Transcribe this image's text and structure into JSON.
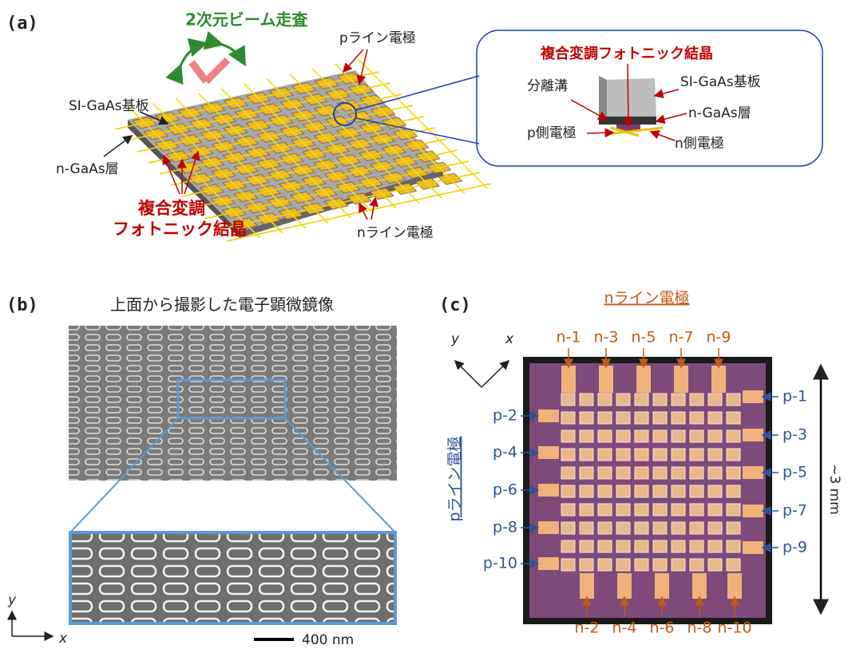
{
  "panel_a": {
    "label": "(a)",
    "beam_scan": "2次元ビーム走査",
    "p_line": "pライン電極",
    "substrate": "SI-GaAs基板",
    "n_layer": "n-GaAs層",
    "crystal_lines": [
      "複合変調",
      "フォトニック結晶"
    ],
    "n_line": "nライン電極",
    "inset": {
      "title": "複合変調フォトニック結晶",
      "groove": "分離溝",
      "substrate": "SI-GaAs基板",
      "n_layer": "n-GaAs層",
      "p_electrode": "p側電極",
      "n_electrode": "n側電極"
    }
  },
  "panel_b": {
    "label": "(b)",
    "title": "上面から撮影した電子顕微鏡像",
    "axis_y": "y",
    "axis_x": "x",
    "scale": "400 nm"
  },
  "panel_c": {
    "label": "(c)",
    "title": "nライン電極",
    "axis_y": "y",
    "axis_x": "x",
    "top_labels": [
      "n-1",
      "n-3",
      "n-5",
      "n-7",
      "n-9"
    ],
    "bottom_labels": [
      "n-2",
      "n-4",
      "n-6",
      "n-8",
      "n-10"
    ],
    "right_labels": [
      "p-1",
      "p-3",
      "p-5",
      "p-7",
      "p-9"
    ],
    "left_labels": [
      "p-2",
      "p-4",
      "p-6",
      "p-8",
      "p-10"
    ],
    "side_title": "pライン電極",
    "size": "~3 mm"
  }
}
